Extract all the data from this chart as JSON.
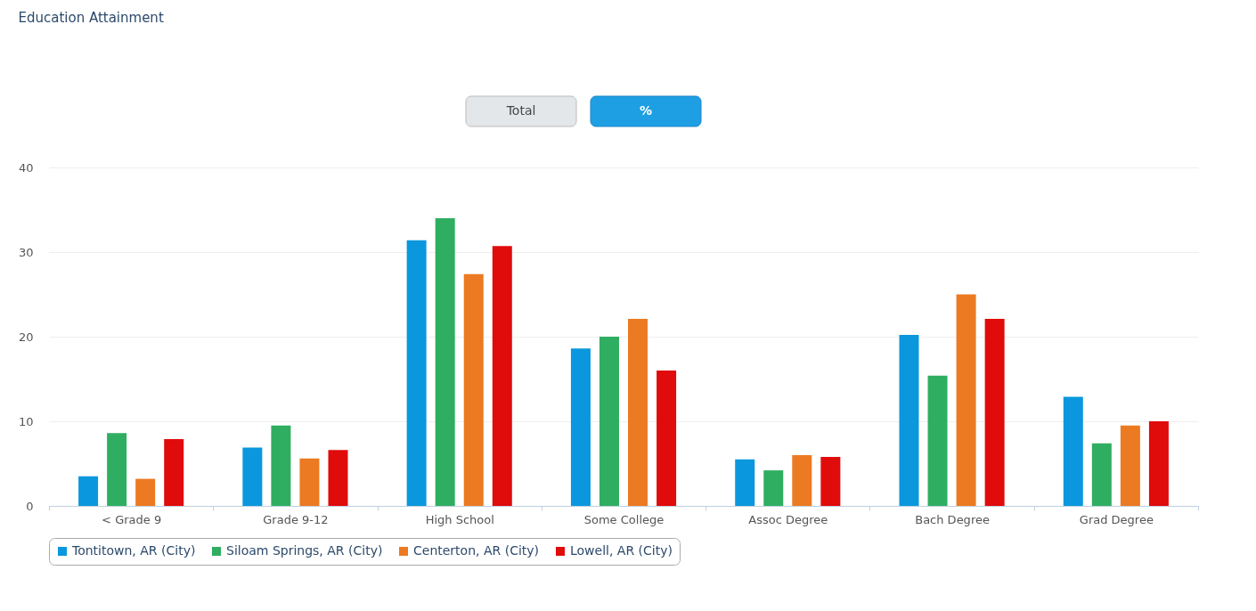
{
  "chart_data": {
    "type": "bar",
    "title": "Education Attainment",
    "annotations": [
      "Total",
      "%"
    ],
    "categories": [
      "< Grade 9",
      "Grade 9-12",
      "High School",
      "Some College",
      "Assoc Degree",
      "Bach Degree",
      "Grad Degree"
    ],
    "series": [
      {
        "name": "Tontitown, AR (City)",
        "color": "#0b97dd",
        "values": [
          3.5,
          6.9,
          31.4,
          18.6,
          5.5,
          20.2,
          12.9
        ]
      },
      {
        "name": "Siloam Springs, AR (City)",
        "color": "#2fae61",
        "values": [
          8.6,
          9.5,
          34.0,
          20.0,
          4.2,
          15.4,
          7.4
        ]
      },
      {
        "name": "Centerton, AR (City)",
        "color": "#ec7a22",
        "values": [
          3.2,
          5.6,
          27.4,
          22.1,
          6.0,
          25.0,
          9.5
        ]
      },
      {
        "name": "Lowell, AR (City)",
        "color": "#e00b0b",
        "values": [
          7.9,
          6.6,
          30.7,
          16.0,
          5.8,
          22.1,
          10.0
        ]
      }
    ],
    "ylim": [
      0,
      40
    ],
    "yticks": [
      0,
      10,
      20,
      30,
      40
    ],
    "grid": "y",
    "legend": "bottom"
  }
}
